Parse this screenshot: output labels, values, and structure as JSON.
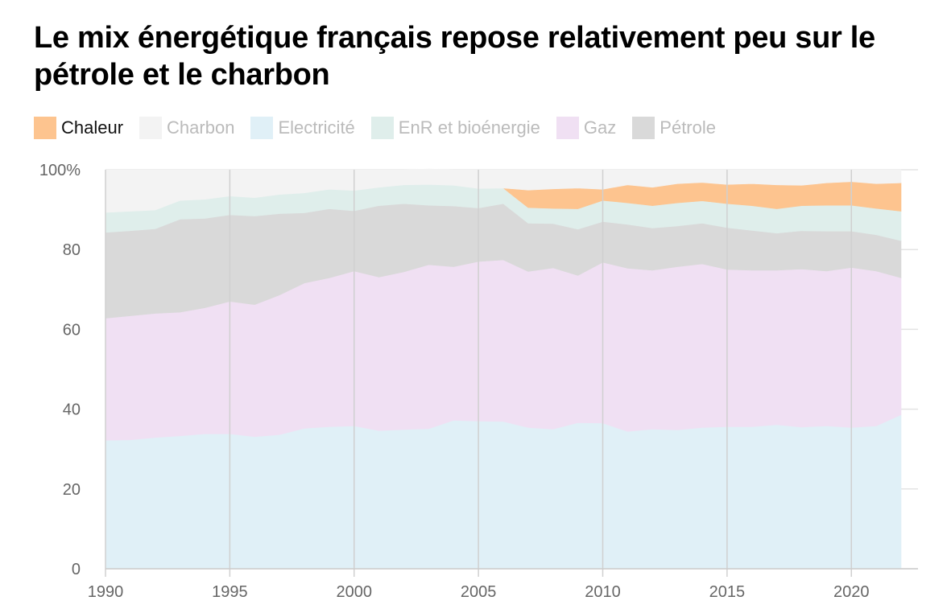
{
  "title": "Le mix énergétique français repose relativement peu sur le pétrole et le charbon",
  "legend": [
    {
      "label": "Chaleur",
      "color": "#FDC48F",
      "active": true
    },
    {
      "label": "Charbon",
      "color": "#F3F3F3",
      "active": false
    },
    {
      "label": "Electricité",
      "color": "#E0F0F7",
      "active": false
    },
    {
      "label": "EnR et bioénergie",
      "color": "#DFEEEB",
      "active": false
    },
    {
      "label": "Gaz",
      "color": "#F0E0F3",
      "active": false
    },
    {
      "label": "Pétrole",
      "color": "#D9D9D9",
      "active": false
    }
  ],
  "chart_data": {
    "type": "area",
    "stacked": true,
    "x": [
      1990,
      1991,
      1992,
      1993,
      1994,
      1995,
      1996,
      1997,
      1998,
      1999,
      2000,
      2001,
      2002,
      2003,
      2004,
      2005,
      2006,
      2007,
      2008,
      2009,
      2010,
      2011,
      2012,
      2013,
      2014,
      2015,
      2016,
      2017,
      2018,
      2019,
      2020,
      2021,
      2022
    ],
    "x_ticks": [
      "1990",
      "1995",
      "2000",
      "2005",
      "2010",
      "2015",
      "2020"
    ],
    "y_ticks": [
      "0",
      "20",
      "40",
      "60",
      "80",
      "100%"
    ],
    "ylim": [
      0,
      100
    ],
    "grid": true,
    "legend_position": "top",
    "series": [
      {
        "name": "Electricité",
        "color": "#E0F0F7",
        "values": [
          32.2,
          32.3,
          32.9,
          33.3,
          33.8,
          33.8,
          33.1,
          33.6,
          35.2,
          35.6,
          35.8,
          34.6,
          34.9,
          35.1,
          37.2,
          37.0,
          36.9,
          35.4,
          35.0,
          36.6,
          36.5,
          34.4,
          35.0,
          34.8,
          35.4,
          35.6,
          35.6,
          36.1,
          35.5,
          35.8,
          35.4,
          35.8,
          38.6
        ]
      },
      {
        "name": "Gaz",
        "color": "#F0E0F3",
        "values": [
          30.6,
          31.1,
          31.1,
          31.0,
          31.6,
          33.2,
          33.1,
          35.0,
          36.4,
          37.3,
          38.8,
          38.5,
          39.5,
          41.1,
          38.5,
          40.0,
          40.5,
          39.1,
          40.4,
          36.9,
          40.3,
          40.9,
          39.8,
          40.9,
          41.0,
          39.4,
          39.2,
          38.7,
          39.6,
          38.8,
          40.1,
          38.8,
          34.3
        ]
      },
      {
        "name": "Pétrole",
        "color": "#D9D9D9",
        "values": [
          21.5,
          21.3,
          21.2,
          23.3,
          22.4,
          21.7,
          22.2,
          20.4,
          17.6,
          17.3,
          15.1,
          17.9,
          17.1,
          14.9,
          15.2,
          13.4,
          14.1,
          12.1,
          11.1,
          11.6,
          10.2,
          11.0,
          10.6,
          10.2,
          10.2,
          10.5,
          10.0,
          9.3,
          9.6,
          10.0,
          9.1,
          9.1,
          9.3
        ]
      },
      {
        "name": "EnR et bioénergie",
        "color": "#DFEEEB",
        "values": [
          5.0,
          4.9,
          4.7,
          4.7,
          4.8,
          4.7,
          4.6,
          4.8,
          5.0,
          4.9,
          5.1,
          4.6,
          4.7,
          5.2,
          5.2,
          4.9,
          3.9,
          3.9,
          3.8,
          5.1,
          5.3,
          5.4,
          5.6,
          5.8,
          5.6,
          6.0,
          6.2,
          6.1,
          6.3,
          6.5,
          6.5,
          6.6,
          7.4
        ]
      },
      {
        "name": "Chaleur",
        "color": "#FDC48F",
        "values": [
          0,
          0,
          0,
          0,
          0,
          0,
          0,
          0,
          0,
          0,
          0,
          0,
          0,
          0,
          0,
          0,
          0,
          4.4,
          4.9,
          5.2,
          2.8,
          4.5,
          4.6,
          4.8,
          4.6,
          4.8,
          5.5,
          6.0,
          5.1,
          5.6,
          5.9,
          6.2,
          7.1
        ]
      },
      {
        "name": "Charbon",
        "color": "#F3F3F3",
        "values": [
          10.7,
          10.4,
          10.1,
          7.7,
          7.4,
          6.6,
          7.0,
          6.2,
          5.8,
          4.9,
          5.2,
          4.4,
          3.8,
          3.9,
          3.9,
          4.7,
          4.6,
          5.1,
          4.8,
          4.6,
          4.9,
          3.8,
          4.4,
          3.5,
          3.2,
          3.7,
          3.5,
          3.8,
          3.9,
          3.3,
          3.0,
          3.5,
          3.3
        ]
      }
    ]
  }
}
